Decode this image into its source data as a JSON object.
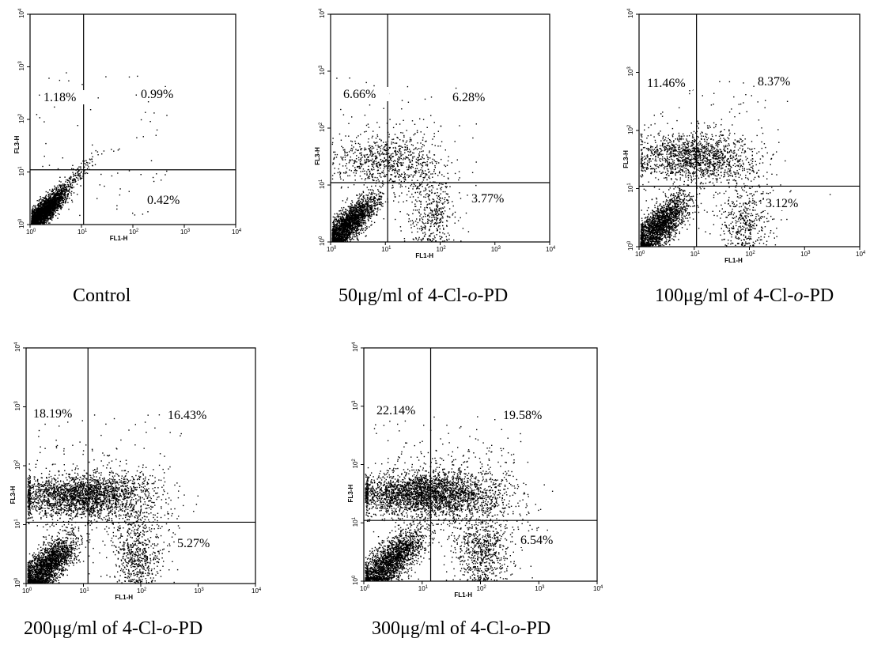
{
  "chart_data": [
    {
      "type": "scatter",
      "caption": {
        "pre": "",
        "post": "Control"
      },
      "xlabel": "FL1-H",
      "ylabel": "FL3-H",
      "xlim": [
        1,
        10000
      ],
      "ylim": [
        1,
        10000
      ],
      "log_scale": true,
      "x_ticks": [
        "10",
        "10",
        "10",
        "10",
        "10"
      ],
      "x_tick_exp": [
        "0",
        "1",
        "2",
        "3",
        "4"
      ],
      "y_ticks": [
        "10",
        "10",
        "10",
        "10",
        "10"
      ],
      "y_tick_exp": [
        "0",
        "1",
        "2",
        "3",
        "4"
      ],
      "gate": {
        "x": 11,
        "y": 11
      },
      "quadrants": {
        "upper_left": "1.18%",
        "upper_right": "0.99%",
        "lower_right": "0.42%"
      },
      "populations": [
        {
          "cx": 0.25,
          "cy": 0.25,
          "sx": 0.22,
          "sy": 0.22,
          "n": 2600,
          "corr": 0.85
        },
        {
          "cx": 0.9,
          "cy": 0.95,
          "sx": 0.18,
          "sy": 0.18,
          "n": 120,
          "corr": 0.9
        }
      ]
    },
    {
      "type": "scatter",
      "caption": {
        "pre": "50μg/ml of 4-Cl-",
        "italic": "o",
        "post": "-PD"
      },
      "xlabel": "FL1-H",
      "ylabel": "FL3-H",
      "xlim": [
        1,
        10000
      ],
      "ylim": [
        1,
        10000
      ],
      "log_scale": true,
      "x_ticks": [
        "10",
        "10",
        "10",
        "10",
        "10"
      ],
      "x_tick_exp": [
        "0",
        "1",
        "2",
        "3",
        "4"
      ],
      "y_ticks": [
        "10",
        "10",
        "10",
        "10",
        "10"
      ],
      "y_tick_exp": [
        "0",
        "1",
        "2",
        "3",
        "4"
      ],
      "gate": {
        "x": 11,
        "y": 11
      },
      "quadrants": {
        "upper_left": "6.66%",
        "upper_right": "6.28%",
        "lower_right": "3.77%"
      },
      "populations": [
        {
          "cx": 0.3,
          "cy": 0.3,
          "sx": 0.25,
          "sy": 0.25,
          "n": 2200,
          "corr": 0.8
        },
        {
          "cx": 0.9,
          "cy": 1.45,
          "sx": 0.45,
          "sy": 0.22,
          "n": 650,
          "corr": 0.1
        },
        {
          "cx": 1.85,
          "cy": 0.45,
          "sx": 0.2,
          "sy": 0.3,
          "n": 300,
          "corr": 0
        },
        {
          "cx": 1.6,
          "cy": 1.2,
          "sx": 0.35,
          "sy": 0.45,
          "n": 250,
          "corr": -0.3
        }
      ]
    },
    {
      "type": "scatter",
      "caption": {
        "pre": "100μg/ml of 4-Cl-",
        "italic": "o",
        "post": "-PD"
      },
      "xlabel": "FL1-H",
      "ylabel": "FL3-H",
      "xlim": [
        1,
        10000
      ],
      "ylim": [
        1,
        10000
      ],
      "log_scale": true,
      "x_ticks": [
        "10",
        "10",
        "10",
        "10",
        "10"
      ],
      "x_tick_exp": [
        "0",
        "1",
        "2",
        "3",
        "4"
      ],
      "y_ticks": [
        "10",
        "10",
        "10",
        "10",
        "10"
      ],
      "y_tick_exp": [
        "0",
        "1",
        "2",
        "3",
        "4"
      ],
      "gate": {
        "x": 11,
        "y": 11
      },
      "quadrants": {
        "upper_left": "11.46%",
        "upper_right": "8.37%",
        "lower_right": "3.12%"
      },
      "populations": [
        {
          "cx": 0.35,
          "cy": 0.35,
          "sx": 0.28,
          "sy": 0.28,
          "n": 2000,
          "corr": 0.75
        },
        {
          "cx": 0.9,
          "cy": 1.55,
          "sx": 0.5,
          "sy": 0.2,
          "n": 1300,
          "corr": 0
        },
        {
          "cx": 1.9,
          "cy": 0.4,
          "sx": 0.22,
          "sy": 0.25,
          "n": 350,
          "corr": 0
        },
        {
          "cx": 1.7,
          "cy": 1.3,
          "sx": 0.4,
          "sy": 0.4,
          "n": 250,
          "corr": -0.3
        }
      ]
    },
    {
      "type": "scatter",
      "caption": {
        "pre": "200μg/ml of 4-Cl-",
        "italic": "o",
        "post": "-PD"
      },
      "xlabel": "FL1-H",
      "ylabel": "FL3-H",
      "xlim": [
        1,
        10000
      ],
      "ylim": [
        1,
        10000
      ],
      "log_scale": true,
      "x_ticks": [
        "10",
        "10",
        "10",
        "10",
        "10"
      ],
      "x_tick_exp": [
        "0",
        "1",
        "2",
        "3",
        "4"
      ],
      "y_ticks": [
        "10",
        "10",
        "10",
        "10",
        "10"
      ],
      "y_tick_exp": [
        "0",
        "1",
        "2",
        "3",
        "4"
      ],
      "gate": {
        "x": 12,
        "y": 11
      },
      "quadrants": {
        "upper_left": "18.19%",
        "upper_right": "16.43%",
        "lower_right": "5.27%"
      },
      "populations": [
        {
          "cx": 0.35,
          "cy": 0.3,
          "sx": 0.25,
          "sy": 0.25,
          "n": 2100,
          "corr": 0.7
        },
        {
          "cx": 0.9,
          "cy": 1.5,
          "sx": 0.55,
          "sy": 0.18,
          "n": 2200,
          "corr": 0
        },
        {
          "cx": 1.95,
          "cy": 0.45,
          "sx": 0.2,
          "sy": 0.28,
          "n": 500,
          "corr": 0
        },
        {
          "cx": 1.8,
          "cy": 1.35,
          "sx": 0.45,
          "sy": 0.4,
          "n": 450,
          "corr": -0.3
        }
      ]
    },
    {
      "type": "scatter",
      "caption": {
        "pre": "300μg/ml of 4-Cl-",
        "italic": "o",
        "post": "-PD"
      },
      "xlabel": "FL1-H",
      "ylabel": "FL3-H",
      "xlim": [
        1,
        10000
      ],
      "ylim": [
        1,
        10000
      ],
      "log_scale": true,
      "x_ticks": [
        "10",
        "10",
        "10",
        "10",
        "10"
      ],
      "x_tick_exp": [
        "0",
        "1",
        "2",
        "3",
        "4"
      ],
      "y_ticks": [
        "10",
        "10",
        "10",
        "10",
        "10"
      ],
      "y_tick_exp": [
        "0",
        "1",
        "2",
        "3",
        "4"
      ],
      "gate": {
        "x": 14,
        "y": 11
      },
      "quadrants": {
        "upper_left": "22.14%",
        "upper_right": "19.58%",
        "lower_right": "6.54%"
      },
      "populations": [
        {
          "cx": 0.45,
          "cy": 0.35,
          "sx": 0.3,
          "sy": 0.28,
          "n": 2100,
          "corr": 0.75
        },
        {
          "cx": 1.0,
          "cy": 1.5,
          "sx": 0.6,
          "sy": 0.18,
          "n": 2600,
          "corr": 0
        },
        {
          "cx": 2.0,
          "cy": 0.5,
          "sx": 0.22,
          "sy": 0.3,
          "n": 600,
          "corr": 0
        },
        {
          "cx": 1.9,
          "cy": 1.4,
          "sx": 0.5,
          "sy": 0.45,
          "n": 550,
          "corr": -0.3
        }
      ]
    }
  ]
}
